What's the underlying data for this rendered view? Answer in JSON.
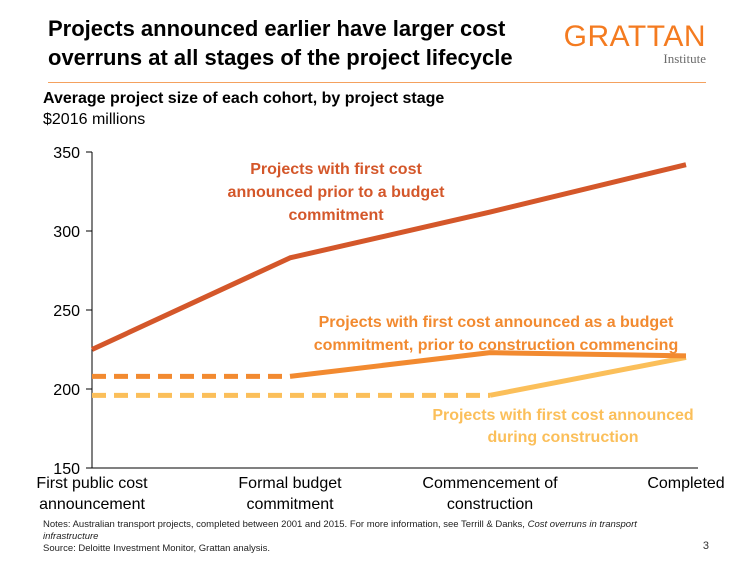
{
  "title": {
    "line1": "Projects announced earlier have larger cost",
    "line2": "overruns at all stages of the project lifecycle"
  },
  "logo": {
    "name": "GRATTAN",
    "sub": "Institute",
    "color": "#F47B20"
  },
  "subtitle": "Average project size of each cohort, by project stage",
  "units": "$2016 millions",
  "notes": {
    "prefix": "Notes: Australian transport projects, completed between 2001 and 2015. For more information, see Terrill & Danks, ",
    "italic": "Cost overruns in transport infrastructure",
    "source": "Source: Deloitte Investment Monitor, Grattan analysis."
  },
  "page_number": "3",
  "chart_data": {
    "type": "line",
    "categories": [
      [
        "First public cost",
        "announcement"
      ],
      [
        "Formal budget",
        "commitment"
      ],
      [
        "Commencement of",
        "construction"
      ],
      [
        "Completed"
      ]
    ],
    "ylim": [
      150,
      350
    ],
    "yticks": [
      150,
      200,
      250,
      300,
      350
    ],
    "grid": false,
    "series": [
      {
        "name": "Projects with first cost announced prior to a budget commitment",
        "label_lines": [
          "Projects with first cost",
          "announced prior to a budget",
          "commitment"
        ],
        "color": "#D4572A",
        "values": [
          225,
          283,
          312,
          342
        ],
        "dashed_until": 0
      },
      {
        "name": "Projects with first cost announced as a budget commitment, prior to construction commencing",
        "label_lines": [
          "Projects with first cost announced as a budget",
          "commitment, prior to construction commencing"
        ],
        "color": "#F28A30",
        "values": [
          208,
          208,
          223,
          221
        ],
        "dashed_until": 1
      },
      {
        "name": "Projects with first cost announced during construction",
        "label_lines": [
          "Projects with first cost announced",
          "during construction"
        ],
        "color": "#FBBF5A",
        "values": [
          196,
          196,
          196,
          220
        ],
        "dashed_until": 2
      }
    ]
  }
}
